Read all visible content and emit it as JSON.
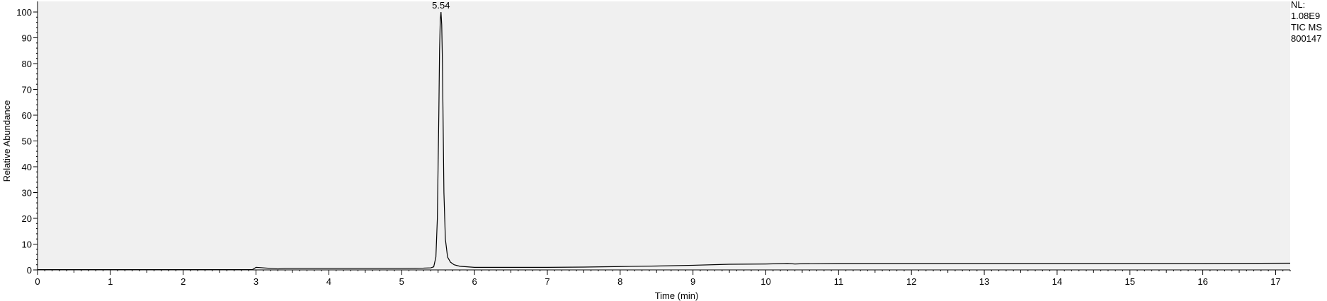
{
  "chart_data": {
    "type": "line",
    "xlabel": "Time (min)",
    "ylabel": "Relative Abundance",
    "xlim": [
      0,
      17.2
    ],
    "ylim": [
      0,
      100
    ],
    "x_ticks": [
      0,
      1,
      2,
      3,
      4,
      5,
      6,
      7,
      8,
      9,
      10,
      11,
      12,
      13,
      14,
      15,
      16,
      17
    ],
    "y_ticks": [
      0,
      10,
      20,
      30,
      40,
      50,
      60,
      70,
      80,
      90,
      100
    ],
    "grid": false,
    "background_color": "#f0f0f0",
    "line_color": "#000000",
    "annotations": [
      {
        "x": 5.54,
        "y": 100,
        "text": "5.54"
      }
    ],
    "info_box": [
      "NL:",
      "1.08E9",
      "TIC  MS",
      "800147"
    ],
    "series": [
      {
        "x": [
          0,
          0.5,
          1,
          1.5,
          2,
          2.5,
          2.95,
          3.0,
          3.05,
          3.2,
          3.3,
          3.4,
          3.6,
          4.0,
          4.5,
          5.0,
          5.3,
          5.4,
          5.44,
          5.47,
          5.49,
          5.51,
          5.52,
          5.53,
          5.54,
          5.55,
          5.56,
          5.57,
          5.58,
          5.6,
          5.63,
          5.67,
          5.72,
          5.8,
          5.9,
          6.0,
          6.5,
          7.0,
          7.5,
          8.0,
          8.5,
          9.0,
          9.5,
          10.0,
          10.3,
          10.4,
          10.5,
          11.0,
          12.0,
          13.0,
          14.0,
          15.0,
          16.0,
          17.2
        ],
        "y": [
          0.1,
          0.1,
          0.1,
          0.1,
          0.1,
          0.1,
          0.1,
          1.0,
          0.9,
          0.6,
          0.4,
          0.6,
          0.6,
          0.6,
          0.6,
          0.6,
          0.7,
          0.8,
          1.2,
          5,
          20,
          60,
          85,
          97,
          100,
          95,
          80,
          55,
          30,
          12,
          5,
          3,
          2,
          1.4,
          1.2,
          1.0,
          1.0,
          1.0,
          1.1,
          1.3,
          1.5,
          1.8,
          2.2,
          2.3,
          2.5,
          2.3,
          2.4,
          2.5,
          2.5,
          2.5,
          2.5,
          2.5,
          2.5,
          2.6
        ]
      }
    ]
  }
}
